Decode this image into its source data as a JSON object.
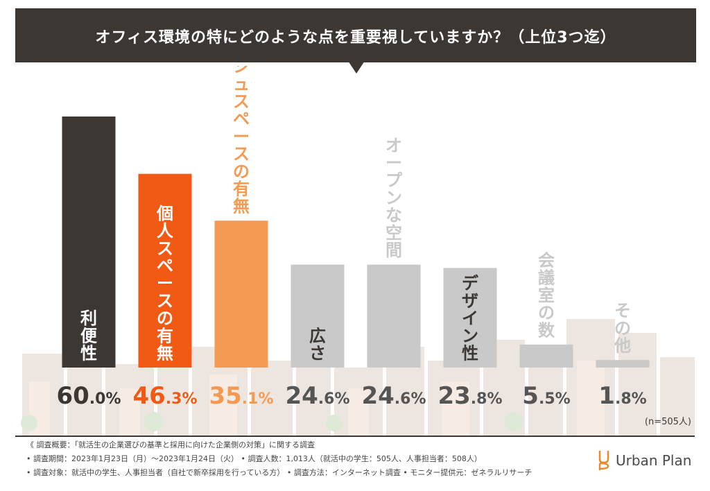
{
  "header": {
    "title": "オフィス環境の特にどのような点を重要視していますか？（上位3つ迄）"
  },
  "chart_data": {
    "type": "bar",
    "title": "オフィス環境の特にどのような点を重要視していますか？（上位3つ迄）",
    "categories": [
      "利便性",
      "個人スペースの有無",
      "リフレッシュスペースの有無",
      "広さ",
      "オープンな空間",
      "デザイン性",
      "会議室の数",
      "その他"
    ],
    "values": [
      60.0,
      46.3,
      35.1,
      24.6,
      24.6,
      23.8,
      5.5,
      1.8
    ],
    "value_labels_int": [
      "60",
      "46",
      "35",
      "24",
      "24",
      "23",
      "5",
      "1"
    ],
    "value_labels_dec": [
      ".0%",
      ".3%",
      ".1%",
      ".6%",
      ".6%",
      ".8%",
      ".5%",
      ".8%"
    ],
    "bar_colors": [
      "#3d3734",
      "#f05a14",
      "#f49a52",
      "#c9c9c9",
      "#c9c9c9",
      "#c9c9c9",
      "#c9c9c9",
      "#c9c9c9"
    ],
    "label_colors": [
      "#ffffff",
      "#ffffff",
      "#ffffff",
      "#3d3734",
      "#3d3734",
      "#3d3734",
      "#3d3734",
      "#3d3734"
    ],
    "value_colors": [
      "#3d3734",
      "#f05a14",
      "#f49a52",
      "#555555",
      "#555555",
      "#555555",
      "#555555",
      "#555555"
    ],
    "ylim": [
      0,
      60
    ],
    "grid": false,
    "sample_note": "(n=505人)"
  },
  "footer": {
    "line1": "《 調査概要：「就活生の企業選びの基準と採用に向けた企業側の対策」に関する調査",
    "line2": "• 調査期間：2023年1月23日（月）〜2023年1月24日（火）  • 調査人数：1,013人（就活中の学生：505人、人事担当者：508人）",
    "line3": "• 調査対象：就活中の学生、人事担当者（自社で新卒採用を行っている方）  • 調査方法：インターネット調査  • モニター提供元：ゼネラルリサーチ"
  },
  "brand": {
    "name": "Urban Plan",
    "color": "#e8892c"
  }
}
